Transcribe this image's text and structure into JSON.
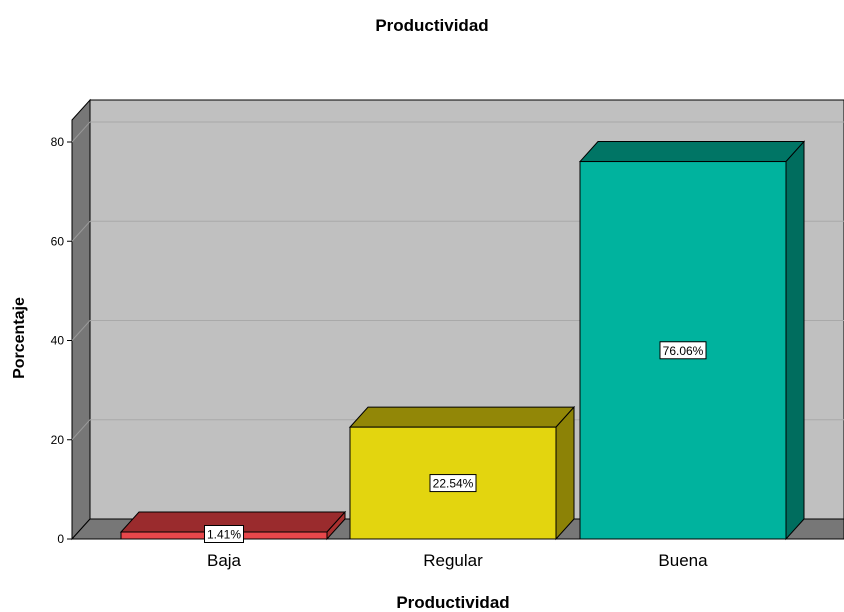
{
  "chart_data": {
    "type": "bar",
    "title": "Productividad",
    "xlabel": "Productividad",
    "ylabel": "Porcentaje",
    "categories": [
      "Baja",
      "Regular",
      "Buena"
    ],
    "values": [
      1.41,
      22.54,
      76.06
    ],
    "data_labels": [
      "1.41%",
      "22.54%",
      "76.06%"
    ],
    "y_ticks": [
      "0",
      "20",
      "40",
      "60",
      "80"
    ],
    "ylim": [
      0,
      80
    ],
    "grid": true,
    "style_3d": true,
    "colors": {
      "bars": [
        {
          "front": "#e8474b",
          "top": "#9a2b2d",
          "side": "#a8302f"
        },
        {
          "front": "#e3d50f",
          "top": "#928707",
          "side": "#8c8206"
        },
        {
          "front": "#00b39e",
          "top": "#007565",
          "side": "#006d5e"
        }
      ],
      "plot_back": "#c0c0c0",
      "plot_side": "#777777",
      "plot_floor": "#777777",
      "gridline": "#a9a9a9"
    }
  }
}
